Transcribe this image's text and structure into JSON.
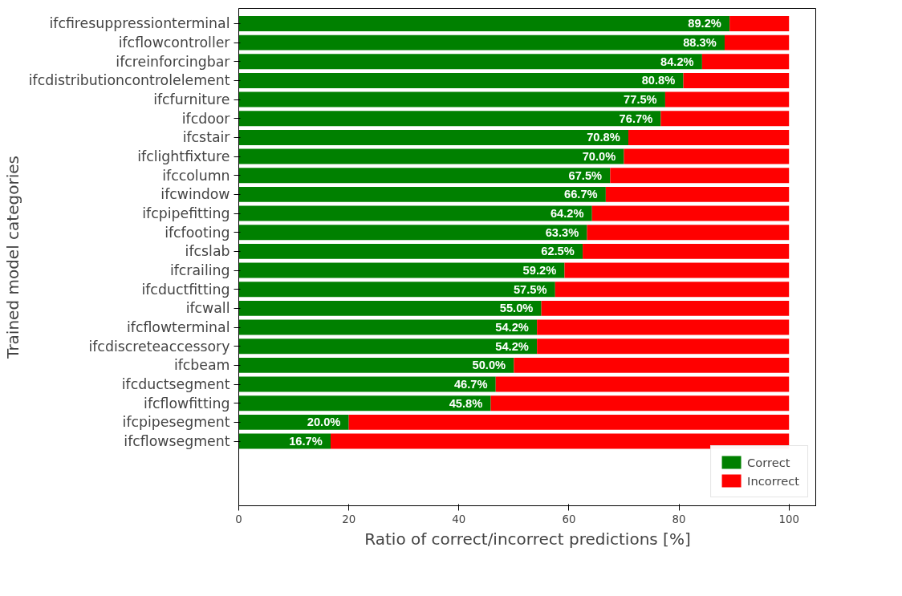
{
  "chart_data": {
    "type": "bar",
    "orientation": "horizontal",
    "stacked": true,
    "xlabel": "Ratio of correct/incorrect predictions [%]",
    "ylabel": "Trained model categories",
    "categories": [
      "ifcfiresuppressionterminal",
      "ifcflowcontroller",
      "ifcreinforcingbar",
      "ifcdistributioncontrolelement",
      "ifcfurniture",
      "ifcdoor",
      "ifcstair",
      "ifclightfixture",
      "ifccolumn",
      "ifcwindow",
      "ifcpipefitting",
      "ifcfooting",
      "ifcslab",
      "ifcrailing",
      "ifcductfitting",
      "ifcwall",
      "ifcflowterminal",
      "ifcdiscreteaccessory",
      "ifcbeam",
      "ifcductsegment",
      "ifcflowfitting",
      "ifcpipesegment",
      "ifcflowsegment"
    ],
    "series": [
      {
        "name": "Correct",
        "color": "#008000",
        "values": [
          89.2,
          88.3,
          84.2,
          80.8,
          77.5,
          76.7,
          70.8,
          70.0,
          67.5,
          66.7,
          64.2,
          63.3,
          62.5,
          59.2,
          57.5,
          55.0,
          54.2,
          54.2,
          50.0,
          46.7,
          45.8,
          20.0,
          16.7
        ],
        "value_labels": [
          "89.2%",
          "88.3%",
          "84.2%",
          "80.8%",
          "77.5%",
          "76.7%",
          "70.8%",
          "70.0%",
          "67.5%",
          "66.7%",
          "64.2%",
          "63.3%",
          "62.5%",
          "59.2%",
          "57.5%",
          "55.0%",
          "54.2%",
          "54.2%",
          "50.0%",
          "46.7%",
          "45.8%",
          "20.0%",
          "16.7%"
        ]
      },
      {
        "name": "Incorrect",
        "color": "#ff0000",
        "values": [
          10.8,
          11.7,
          15.8,
          19.2,
          22.5,
          23.3,
          29.2,
          30.0,
          32.5,
          33.3,
          35.8,
          36.7,
          37.5,
          40.8,
          42.5,
          45.0,
          45.8,
          45.8,
          50.0,
          53.3,
          54.2,
          80.0,
          83.3
        ]
      }
    ],
    "xlim": [
      0,
      105
    ],
    "xticks": [
      0,
      20,
      40,
      60,
      80,
      100
    ],
    "grid": false,
    "legend": "bottom right"
  }
}
